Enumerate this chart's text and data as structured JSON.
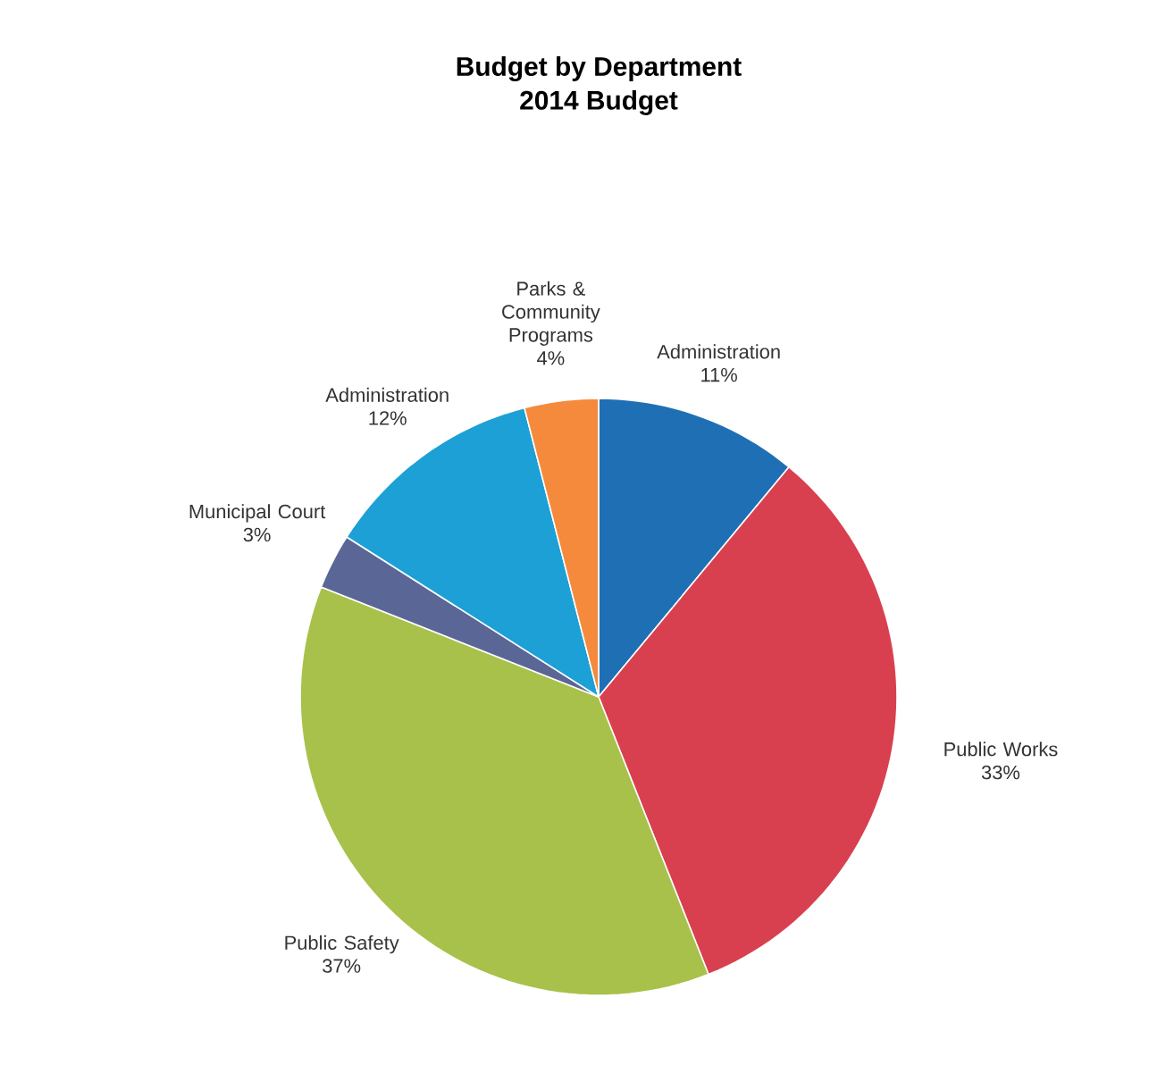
{
  "chart_data": {
    "type": "pie",
    "title": "Budget by Department",
    "subtitle": "2014 Budget",
    "categories": [
      "Administration",
      "Public Works",
      "Public Safety",
      "Municipal Court",
      "Administration",
      "Parks & Community Programs"
    ],
    "values": [
      11,
      33,
      37,
      3,
      12,
      4
    ],
    "colors": [
      "#1f6fb5",
      "#d9404f",
      "#a8c14a",
      "#5a6796",
      "#1ca0d6",
      "#f58a3c"
    ],
    "value_labels": [
      "11%",
      "33%",
      "37%",
      "3%",
      "12%",
      "4%"
    ]
  }
}
